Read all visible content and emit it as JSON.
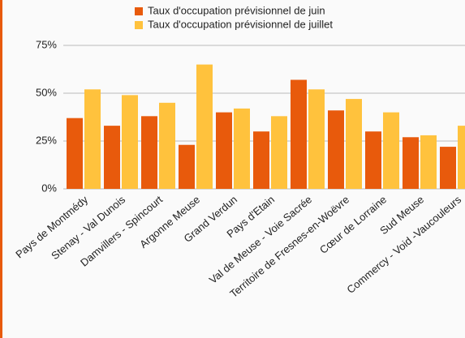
{
  "chart_data": {
    "type": "bar",
    "categories": [
      "Pays de Montmédy",
      "Stenay - Val Dunois",
      "Damvillers - Spincourt",
      "Argonne Meuse",
      "Grand Verdun",
      "Pays d'Etain",
      "Val de Meuse - Voie Sacrée",
      "Territoire de Fresnes-en-Woëvre",
      "Cœur de Lorraine",
      "Sud Meuse",
      "Commercy - Void -Vaucouleurs"
    ],
    "series": [
      {
        "name": "Taux d'occupation prévisionnel de juin",
        "color": "#e85a0c",
        "values": [
          37,
          33,
          38,
          23,
          40,
          30,
          57,
          41,
          30,
          27,
          22
        ]
      },
      {
        "name": "Taux d'occupation prévisionnel de juillet",
        "color": "#ffc23d",
        "values": [
          52,
          49,
          45,
          65,
          42,
          38,
          52,
          47,
          40,
          28,
          33
        ]
      }
    ],
    "ylim": [
      0,
      75
    ],
    "yticks": [
      {
        "value": 0,
        "label": "0%"
      },
      {
        "value": 25,
        "label": "25%"
      },
      {
        "value": 50,
        "label": "50%"
      },
      {
        "value": 75,
        "label": "75%"
      }
    ],
    "grid": true,
    "legend": "top"
  }
}
